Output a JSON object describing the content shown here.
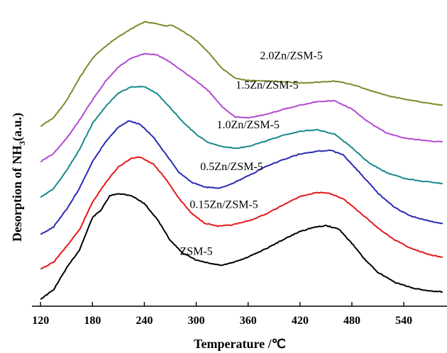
{
  "chart_data": {
    "type": "line",
    "xlabel": "Temperature /℃",
    "ylabel_prefix": "Desorption of NH",
    "ylabel_sub": "3",
    "ylabel_suffix": "(a.u.)",
    "xlim": [
      110,
      590
    ],
    "x_ticks": [
      120,
      180,
      240,
      300,
      360,
      420,
      480,
      540
    ],
    "ylim": [
      0,
      100
    ],
    "grid": false,
    "legend": "inline-labels",
    "series": [
      {
        "name": "ZSM-5",
        "color": "#000000",
        "label_at": [
          300,
          17.5
        ],
        "points": [
          [
            120,
            2.4
          ],
          [
            135,
            5.6
          ],
          [
            150,
            13.0
          ],
          [
            165,
            19.2
          ],
          [
            180,
            30.2
          ],
          [
            190,
            32.8
          ],
          [
            200,
            37.6
          ],
          [
            210,
            38.4
          ],
          [
            225,
            37.7
          ],
          [
            240,
            35.0
          ],
          [
            255,
            29.6
          ],
          [
            270,
            22.4
          ],
          [
            285,
            18.0
          ],
          [
            300,
            15.7
          ],
          [
            315,
            14.6
          ],
          [
            330,
            13.9
          ],
          [
            345,
            15.1
          ],
          [
            360,
            16.8
          ],
          [
            380,
            19.5
          ],
          [
            400,
            22.6
          ],
          [
            420,
            25.5
          ],
          [
            435,
            26.8
          ],
          [
            450,
            27.5
          ],
          [
            465,
            26.3
          ],
          [
            480,
            21.4
          ],
          [
            495,
            15.9
          ],
          [
            510,
            11.6
          ],
          [
            530,
            8.1
          ],
          [
            550,
            6.2
          ],
          [
            570,
            5.2
          ],
          [
            585,
            4.9
          ]
        ]
      },
      {
        "name": "0.15Zn/ZSM-5",
        "color": "#e31a1c",
        "label_at": [
          332,
          33.5
        ],
        "points": [
          [
            120,
            12.6
          ],
          [
            135,
            15.0
          ],
          [
            150,
            20.4
          ],
          [
            165,
            26.0
          ],
          [
            180,
            35.5
          ],
          [
            195,
            42.0
          ],
          [
            210,
            47.5
          ],
          [
            225,
            50.4
          ],
          [
            235,
            50.8
          ],
          [
            250,
            48.6
          ],
          [
            265,
            43.3
          ],
          [
            280,
            36.8
          ],
          [
            295,
            31.5
          ],
          [
            310,
            28.3
          ],
          [
            325,
            27.3
          ],
          [
            340,
            27.6
          ],
          [
            360,
            29.0
          ],
          [
            380,
            31.3
          ],
          [
            400,
            34.4
          ],
          [
            420,
            37.4
          ],
          [
            440,
            38.8
          ],
          [
            455,
            38.4
          ],
          [
            470,
            36.6
          ],
          [
            490,
            31.8
          ],
          [
            510,
            26.7
          ],
          [
            530,
            22.5
          ],
          [
            550,
            19.5
          ],
          [
            570,
            17.5
          ],
          [
            585,
            16.7
          ]
        ]
      },
      {
        "name": "0.5Zn/ZSM-5",
        "color": "#2b2bb5",
        "label_at": [
          341,
          46.4
        ],
        "points": [
          [
            120,
            24.4
          ],
          [
            135,
            27.0
          ],
          [
            150,
            33.0
          ],
          [
            165,
            40.2
          ],
          [
            180,
            49.3
          ],
          [
            195,
            56.0
          ],
          [
            210,
            61.0
          ],
          [
            222,
            63.2
          ],
          [
            235,
            62.0
          ],
          [
            250,
            57.8
          ],
          [
            265,
            51.7
          ],
          [
            280,
            45.6
          ],
          [
            295,
            42.2
          ],
          [
            310,
            40.6
          ],
          [
            325,
            40.2
          ],
          [
            340,
            41.6
          ],
          [
            360,
            44.4
          ],
          [
            380,
            47.5
          ],
          [
            400,
            49.9
          ],
          [
            420,
            51.9
          ],
          [
            440,
            52.8
          ],
          [
            455,
            53.2
          ],
          [
            470,
            51.5
          ],
          [
            490,
            45.2
          ],
          [
            510,
            38.6
          ],
          [
            530,
            33.5
          ],
          [
            550,
            30.5
          ],
          [
            570,
            29.0
          ],
          [
            585,
            28.2
          ]
        ]
      },
      {
        "name": "1.0Zn/ZSM-5",
        "color": "#1a8a8a",
        "label_at": [
          360,
          60.6
        ],
        "points": [
          [
            120,
            37.1
          ],
          [
            135,
            40.0
          ],
          [
            150,
            46.2
          ],
          [
            165,
            53.4
          ],
          [
            180,
            62.3
          ],
          [
            195,
            68.0
          ],
          [
            210,
            72.6
          ],
          [
            225,
            74.8
          ],
          [
            240,
            74.8
          ],
          [
            255,
            72.4
          ],
          [
            270,
            67.6
          ],
          [
            285,
            62.6
          ],
          [
            300,
            58.6
          ],
          [
            315,
            55.6
          ],
          [
            330,
            54.5
          ],
          [
            345,
            53.8
          ],
          [
            360,
            54.4
          ],
          [
            380,
            56.2
          ],
          [
            400,
            58.2
          ],
          [
            420,
            59.6
          ],
          [
            440,
            60.1
          ],
          [
            460,
            58.7
          ],
          [
            480,
            54.0
          ],
          [
            500,
            48.8
          ],
          [
            520,
            45.5
          ],
          [
            540,
            43.6
          ],
          [
            560,
            42.7
          ],
          [
            575,
            42.1
          ],
          [
            585,
            41.7
          ]
        ]
      },
      {
        "name": "1.5Zn/ZSM-5",
        "color": "#b24ccf",
        "label_at": [
          382,
          74.1
        ],
        "points": [
          [
            120,
            49.3
          ],
          [
            135,
            52.0
          ],
          [
            150,
            57.2
          ],
          [
            165,
            63.4
          ],
          [
            180,
            70.3
          ],
          [
            195,
            76.6
          ],
          [
            210,
            81.5
          ],
          [
            225,
            84.6
          ],
          [
            240,
            86.1
          ],
          [
            255,
            85.6
          ],
          [
            270,
            83.2
          ],
          [
            285,
            79.9
          ],
          [
            300,
            76.8
          ],
          [
            315,
            73.1
          ],
          [
            330,
            68.0
          ],
          [
            345,
            64.5
          ],
          [
            360,
            64.2
          ],
          [
            380,
            65.3
          ],
          [
            400,
            67.0
          ],
          [
            420,
            68.5
          ],
          [
            440,
            69.8
          ],
          [
            460,
            70.0
          ],
          [
            480,
            67.2
          ],
          [
            500,
            62.6
          ],
          [
            520,
            59.0
          ],
          [
            540,
            57.3
          ],
          [
            560,
            56.6
          ],
          [
            575,
            56.2
          ],
          [
            585,
            56.0
          ]
        ]
      },
      {
        "name": "2.0Zn/ZSM-5",
        "color": "#7d8a2e",
        "label_at": [
          410,
          84.2
        ],
        "points": [
          [
            120,
            61.3
          ],
          [
            135,
            64.2
          ],
          [
            150,
            70.0
          ],
          [
            165,
            77.8
          ],
          [
            180,
            84.5
          ],
          [
            190,
            87.3
          ],
          [
            205,
            90.8
          ],
          [
            220,
            93.7
          ],
          [
            230,
            95.4
          ],
          [
            240,
            96.9
          ],
          [
            255,
            96.2
          ],
          [
            265,
            95.5
          ],
          [
            272,
            95.8
          ],
          [
            285,
            93.6
          ],
          [
            300,
            90.6
          ],
          [
            315,
            86.2
          ],
          [
            330,
            81.0
          ],
          [
            345,
            77.7
          ],
          [
            360,
            76.9
          ],
          [
            380,
            76.8
          ],
          [
            400,
            76.5
          ],
          [
            420,
            76.1
          ],
          [
            440,
            76.3
          ],
          [
            460,
            76.7
          ],
          [
            480,
            75.6
          ],
          [
            500,
            73.6
          ],
          [
            520,
            71.8
          ],
          [
            540,
            70.6
          ],
          [
            560,
            69.6
          ],
          [
            575,
            68.8
          ],
          [
            585,
            68.5
          ]
        ]
      }
    ]
  }
}
